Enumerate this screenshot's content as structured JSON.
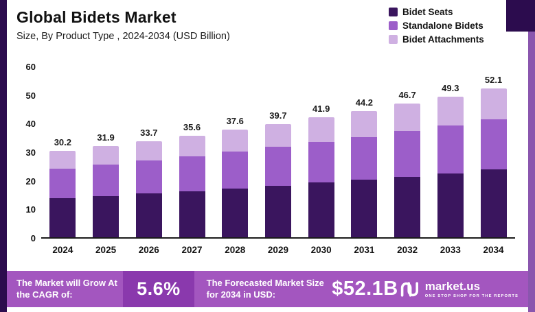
{
  "header": {
    "title": "Global Bidets Market",
    "subtitle": "Size, By Product Type , 2024-2034 (USD Billion)"
  },
  "legend": [
    {
      "label": "Bidet Seats",
      "color": "#3a155e"
    },
    {
      "label": "Standalone Bidets",
      "color": "#9c5ec9"
    },
    {
      "label": "Bidet Attachments",
      "color": "#cfb0e2"
    }
  ],
  "chart_data": {
    "type": "bar",
    "stacked": true,
    "title": "Global Bidets Market",
    "xlabel": "",
    "ylabel": "",
    "ylim": [
      0,
      60
    ],
    "yticks": [
      0,
      10,
      20,
      30,
      40,
      50,
      60
    ],
    "grid": false,
    "legend_position": "top-right",
    "categories": [
      "2024",
      "2025",
      "2026",
      "2027",
      "2028",
      "2029",
      "2030",
      "2031",
      "2032",
      "2033",
      "2034"
    ],
    "series": [
      {
        "name": "Bidet Seats",
        "color": "#3a155e",
        "values": [
          13.7,
          14.5,
          15.3,
          16.2,
          17.1,
          18.1,
          19.1,
          20.1,
          21.2,
          22.4,
          23.7
        ]
      },
      {
        "name": "Standalone Bidets",
        "color": "#9c5ec9",
        "values": [
          10.3,
          10.9,
          11.5,
          12.1,
          12.8,
          13.5,
          14.2,
          15.0,
          15.9,
          16.8,
          17.7
        ]
      },
      {
        "name": "Bidet Attachments",
        "color": "#cfb0e2",
        "values": [
          6.2,
          6.5,
          6.9,
          7.3,
          7.7,
          8.1,
          8.6,
          9.1,
          9.6,
          10.1,
          10.7
        ]
      }
    ],
    "totals": [
      30.2,
      31.9,
      33.7,
      35.6,
      37.6,
      39.7,
      41.9,
      44.2,
      46.7,
      49.3,
      52.1
    ]
  },
  "footer": {
    "cagr_label": "The Market will Grow At the CAGR of:",
    "cagr_value": "5.6%",
    "forecast_label": "The Forecasted Market Size for 2034 in USD:",
    "forecast_value": "$52.1B",
    "brand": "market.us",
    "brand_tagline": "One Stop Shop For The Reports"
  },
  "colors": {
    "strip_left": "#2c0c4e",
    "strip_right": "#8a56ae",
    "corner_block": "#2c0c4e",
    "banner_bg": "#a356bf",
    "cagr_box_bg": "#8a39ad",
    "axis": "#1a1a1a"
  }
}
